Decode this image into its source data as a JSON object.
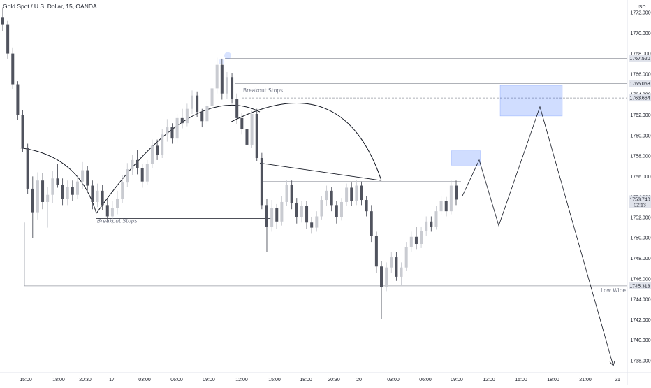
{
  "header": {
    "symbol_title": "Gold Spot / U.S. Dollar, 15, OANDA",
    "currency": "USD"
  },
  "chart_data": {
    "type": "candlestick",
    "title": "Gold Spot / U.S. Dollar, 15, OANDA",
    "y_axis": {
      "unit": "USD",
      "range": [
        1737,
        1773
      ],
      "ticks": [
        "1772.000",
        "1770.000",
        "1768.000",
        "1766.000",
        "1764.000",
        "1762.000",
        "1760.000",
        "1758.000",
        "1756.000",
        "1754.000",
        "1752.000",
        "1750.000",
        "1748.000",
        "1746.000",
        "1744.000",
        "1742.000",
        "1740.000",
        "1738.000"
      ]
    },
    "x_axis": {
      "ticks": [
        "15:00",
        "18:00",
        "20:30",
        "17",
        "03:00",
        "06:00",
        "09:00",
        "12:00",
        "15:00",
        "18:00",
        "20:30",
        "20",
        "03:00",
        "06:00",
        "09:00",
        "12:00",
        "15:00",
        "18:00",
        "21:00",
        "21"
      ]
    },
    "last_price": "1753.740",
    "countdown": "02:13",
    "levels": [
      {
        "price": 1767.52,
        "label": "1767.520"
      },
      {
        "price": 1765.068,
        "label": "1765.068"
      },
      {
        "price": 1763.664,
        "label": "1763.664",
        "style": "dashed"
      },
      {
        "price": 1745.313,
        "label": "1745.313"
      }
    ],
    "annotations": [
      {
        "text": "Breakout Stops",
        "near_price": 1764.2
      },
      {
        "text": "Breakout Stops",
        "near_price": 1751.5
      },
      {
        "text": "Low Wipe",
        "near_price": 1744.7
      }
    ],
    "candles": [
      [
        1771.5,
        1772.5,
        1770.2,
        1770.8
      ],
      [
        1770.8,
        1771.2,
        1767.5,
        1768.0
      ],
      [
        1768.0,
        1768.6,
        1764.5,
        1765.0
      ],
      [
        1765.0,
        1765.3,
        1761.5,
        1762.0
      ],
      [
        1762.0,
        1762.5,
        1758.4,
        1758.8
      ],
      [
        1758.8,
        1759.2,
        1754.3,
        1754.8
      ],
      [
        1754.8,
        1756.0,
        1750.0,
        1752.5
      ],
      [
        1752.5,
        1756.4,
        1751.8,
        1755.6
      ],
      [
        1755.6,
        1756.3,
        1752.8,
        1753.5
      ],
      [
        1753.5,
        1755.0,
        1751.0,
        1754.2
      ],
      [
        1754.2,
        1756.5,
        1753.4,
        1755.8
      ],
      [
        1755.8,
        1757.2,
        1754.9,
        1755.2
      ],
      [
        1755.2,
        1755.8,
        1753.2,
        1753.8
      ],
      [
        1753.8,
        1755.6,
        1753.2,
        1755.0
      ],
      [
        1755.0,
        1755.6,
        1753.6,
        1754.2
      ],
      [
        1754.2,
        1756.1,
        1753.8,
        1755.5
      ],
      [
        1755.5,
        1757.4,
        1754.8,
        1756.6
      ],
      [
        1756.6,
        1757.0,
        1754.6,
        1755.1
      ],
      [
        1755.1,
        1755.6,
        1752.8,
        1753.5
      ],
      [
        1753.5,
        1755.3,
        1753.0,
        1754.6
      ],
      [
        1754.6,
        1755.2,
        1752.7,
        1753.2
      ],
      [
        1753.2,
        1753.8,
        1751.6,
        1752.1
      ],
      [
        1752.1,
        1753.6,
        1751.4,
        1752.9
      ],
      [
        1752.9,
        1754.6,
        1752.3,
        1753.8
      ],
      [
        1753.8,
        1756.1,
        1753.4,
        1755.4
      ],
      [
        1755.4,
        1757.3,
        1755.0,
        1756.7
      ],
      [
        1756.7,
        1758.1,
        1756.1,
        1757.6
      ],
      [
        1757.6,
        1758.6,
        1756.2,
        1756.8
      ],
      [
        1756.8,
        1757.2,
        1754.9,
        1755.5
      ],
      [
        1755.5,
        1757.6,
        1755.2,
        1757.2
      ],
      [
        1757.2,
        1759.6,
        1756.8,
        1759.0
      ],
      [
        1759.0,
        1759.6,
        1757.6,
        1758.1
      ],
      [
        1758.1,
        1760.6,
        1757.8,
        1760.1
      ],
      [
        1760.1,
        1761.6,
        1759.4,
        1760.8
      ],
      [
        1760.8,
        1761.2,
        1759.2,
        1759.7
      ],
      [
        1759.7,
        1762.1,
        1759.3,
        1761.7
      ],
      [
        1761.7,
        1762.6,
        1760.7,
        1761.2
      ],
      [
        1761.2,
        1763.1,
        1760.9,
        1762.6
      ],
      [
        1762.6,
        1764.4,
        1762.1,
        1763.9
      ],
      [
        1763.9,
        1764.3,
        1761.8,
        1762.3
      ],
      [
        1762.3,
        1762.6,
        1760.8,
        1761.4
      ],
      [
        1761.4,
        1763.4,
        1761.1,
        1762.9
      ],
      [
        1762.9,
        1765.1,
        1762.6,
        1764.6
      ],
      [
        1764.6,
        1767.6,
        1764.1,
        1766.9
      ],
      [
        1766.9,
        1767.5,
        1763.5,
        1764.1
      ],
      [
        1764.1,
        1766.2,
        1763.6,
        1765.7
      ],
      [
        1765.7,
        1766.1,
        1763.1,
        1763.6
      ],
      [
        1763.6,
        1764.1,
        1761.1,
        1761.7
      ],
      [
        1761.7,
        1762.2,
        1760.1,
        1760.6
      ],
      [
        1760.6,
        1761.1,
        1758.6,
        1759.1
      ],
      [
        1759.1,
        1762.4,
        1758.8,
        1762.1
      ],
      [
        1762.1,
        1762.6,
        1757.5,
        1757.8
      ],
      [
        1757.8,
        1758.3,
        1752.8,
        1753.2
      ],
      [
        1753.2,
        1753.8,
        1748.6,
        1751.1
      ],
      [
        1751.1,
        1753.7,
        1750.6,
        1752.9
      ],
      [
        1752.9,
        1753.3,
        1750.9,
        1751.6
      ],
      [
        1751.6,
        1754.1,
        1751.2,
        1753.5
      ],
      [
        1753.5,
        1755.6,
        1753.1,
        1755.2
      ],
      [
        1755.2,
        1755.6,
        1752.8,
        1753.4
      ],
      [
        1753.4,
        1753.9,
        1751.4,
        1752.0
      ],
      [
        1752.0,
        1753.6,
        1751.5,
        1753.1
      ],
      [
        1753.1,
        1753.6,
        1750.9,
        1751.5
      ],
      [
        1751.5,
        1752.0,
        1750.4,
        1751.0
      ],
      [
        1751.0,
        1752.6,
        1750.6,
        1752.1
      ],
      [
        1752.1,
        1754.1,
        1751.8,
        1753.7
      ],
      [
        1753.7,
        1755.1,
        1753.1,
        1754.6
      ],
      [
        1754.6,
        1755.0,
        1752.6,
        1753.2
      ],
      [
        1753.2,
        1753.6,
        1751.4,
        1752.0
      ],
      [
        1752.0,
        1753.9,
        1751.7,
        1753.5
      ],
      [
        1753.5,
        1755.3,
        1753.1,
        1754.9
      ],
      [
        1754.9,
        1755.4,
        1753.1,
        1753.6
      ],
      [
        1753.6,
        1755.6,
        1753.2,
        1755.1
      ],
      [
        1755.1,
        1755.5,
        1753.2,
        1753.7
      ],
      [
        1753.7,
        1754.1,
        1752.1,
        1752.6
      ],
      [
        1752.6,
        1753.2,
        1749.6,
        1750.2
      ],
      [
        1750.2,
        1750.6,
        1746.6,
        1747.2
      ],
      [
        1747.2,
        1747.7,
        1742.1,
        1745.2
      ],
      [
        1745.2,
        1747.6,
        1744.8,
        1747.1
      ],
      [
        1747.1,
        1748.6,
        1746.6,
        1748.1
      ],
      [
        1748.1,
        1748.6,
        1745.8,
        1746.2
      ],
      [
        1746.2,
        1747.6,
        1745.3,
        1747.1
      ],
      [
        1747.1,
        1749.6,
        1746.8,
        1749.1
      ],
      [
        1749.1,
        1750.6,
        1748.6,
        1750.1
      ],
      [
        1750.1,
        1751.1,
        1748.9,
        1749.4
      ],
      [
        1749.4,
        1751.1,
        1749.0,
        1750.7
      ],
      [
        1750.7,
        1752.1,
        1750.2,
        1751.6
      ],
      [
        1751.6,
        1752.1,
        1750.6,
        1751.1
      ],
      [
        1751.1,
        1753.1,
        1750.8,
        1752.6
      ],
      [
        1752.6,
        1754.1,
        1752.2,
        1753.6
      ],
      [
        1753.6,
        1754.0,
        1752.1,
        1752.6
      ],
      [
        1752.6,
        1755.6,
        1752.3,
        1755.1
      ],
      [
        1755.1,
        1755.6,
        1753.2,
        1753.74
      ]
    ]
  }
}
